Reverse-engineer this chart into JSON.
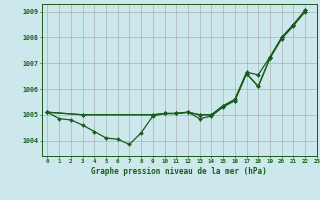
{
  "title": "Graphe pression niveau de la mer (hPa)",
  "background_color": "#cce8ec",
  "grid_color": "#b0b0b0",
  "line_color": "#1a5c1a",
  "xlim": [
    -0.5,
    23
  ],
  "ylim": [
    1003.4,
    1009.3
  ],
  "yticks": [
    1004,
    1005,
    1006,
    1007,
    1008,
    1009
  ],
  "xticks": [
    0,
    1,
    2,
    3,
    4,
    5,
    6,
    7,
    8,
    9,
    10,
    11,
    12,
    13,
    14,
    15,
    16,
    17,
    18,
    19,
    20,
    21,
    22,
    23
  ],
  "s1_x": [
    0,
    1,
    2,
    3,
    4,
    5,
    6,
    7,
    8,
    9,
    10,
    11,
    12,
    13,
    14,
    15,
    16,
    17,
    18,
    19,
    20,
    21,
    22
  ],
  "s1_y": [
    1005.1,
    1004.85,
    1004.8,
    1004.6,
    1004.35,
    1004.1,
    1004.05,
    1003.85,
    1004.3,
    1004.95,
    1005.05,
    1005.05,
    1005.1,
    1004.85,
    1004.95,
    1005.3,
    1005.55,
    1006.6,
    1006.1,
    1007.2,
    1008.0,
    1008.5,
    1009.05
  ],
  "s2_x": [
    0,
    3,
    9,
    10,
    11,
    12,
    13,
    14,
    15,
    16,
    17,
    18,
    19,
    20,
    21,
    22
  ],
  "s2_y": [
    1005.1,
    1005.0,
    1005.0,
    1005.05,
    1005.05,
    1005.1,
    1005.0,
    1005.0,
    1005.35,
    1005.6,
    1006.65,
    1006.55,
    1007.25,
    1008.0,
    1008.5,
    1009.05
  ],
  "s3_x": [
    0,
    3,
    9,
    10,
    11,
    12,
    13,
    14,
    15,
    16,
    17,
    18,
    19,
    20,
    21,
    22
  ],
  "s3_y": [
    1005.1,
    1005.0,
    1005.0,
    1005.05,
    1005.05,
    1005.1,
    1005.0,
    1005.0,
    1005.35,
    1005.55,
    1006.6,
    1006.1,
    1007.2,
    1007.95,
    1008.45,
    1009.0
  ]
}
